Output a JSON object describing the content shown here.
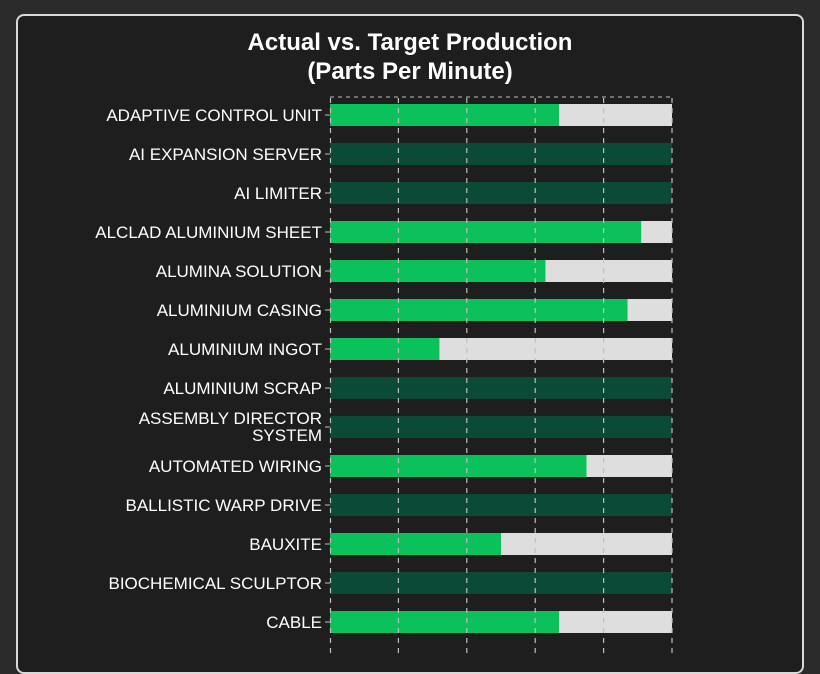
{
  "chart_data": {
    "type": "bar",
    "orientation": "horizontal",
    "stacked": true,
    "title": [
      "Actual vs. Target Production",
      "(Parts Per Minute)"
    ],
    "categories": [
      "ADAPTIVE CONTROL UNIT",
      "AI EXPANSION SERVER",
      "AI LIMITER",
      "ALCLAD ALUMINIUM SHEET",
      "ALUMINA SOLUTION",
      "ALUMINIUM CASING",
      "ALUMINIUM INGOT",
      "ALUMINIUM SCRAP",
      "ASSEMBLY DIRECTOR SYSTEM",
      "AUTOMATED WIRING",
      "BALLISTIC WARP DRIVE",
      "BAUXITE",
      "BIOCHEMICAL SCULPTOR",
      "CABLE"
    ],
    "actual_percent": [
      67,
      null,
      null,
      91,
      63,
      87,
      32,
      null,
      null,
      75,
      null,
      50,
      null,
      67
    ],
    "target_percent": 100,
    "grid": true,
    "colors": {
      "actual": "#0bc15c",
      "remaining": "#dedede",
      "no_data": "#0b4a36",
      "grid": "#bfbfbf"
    }
  }
}
